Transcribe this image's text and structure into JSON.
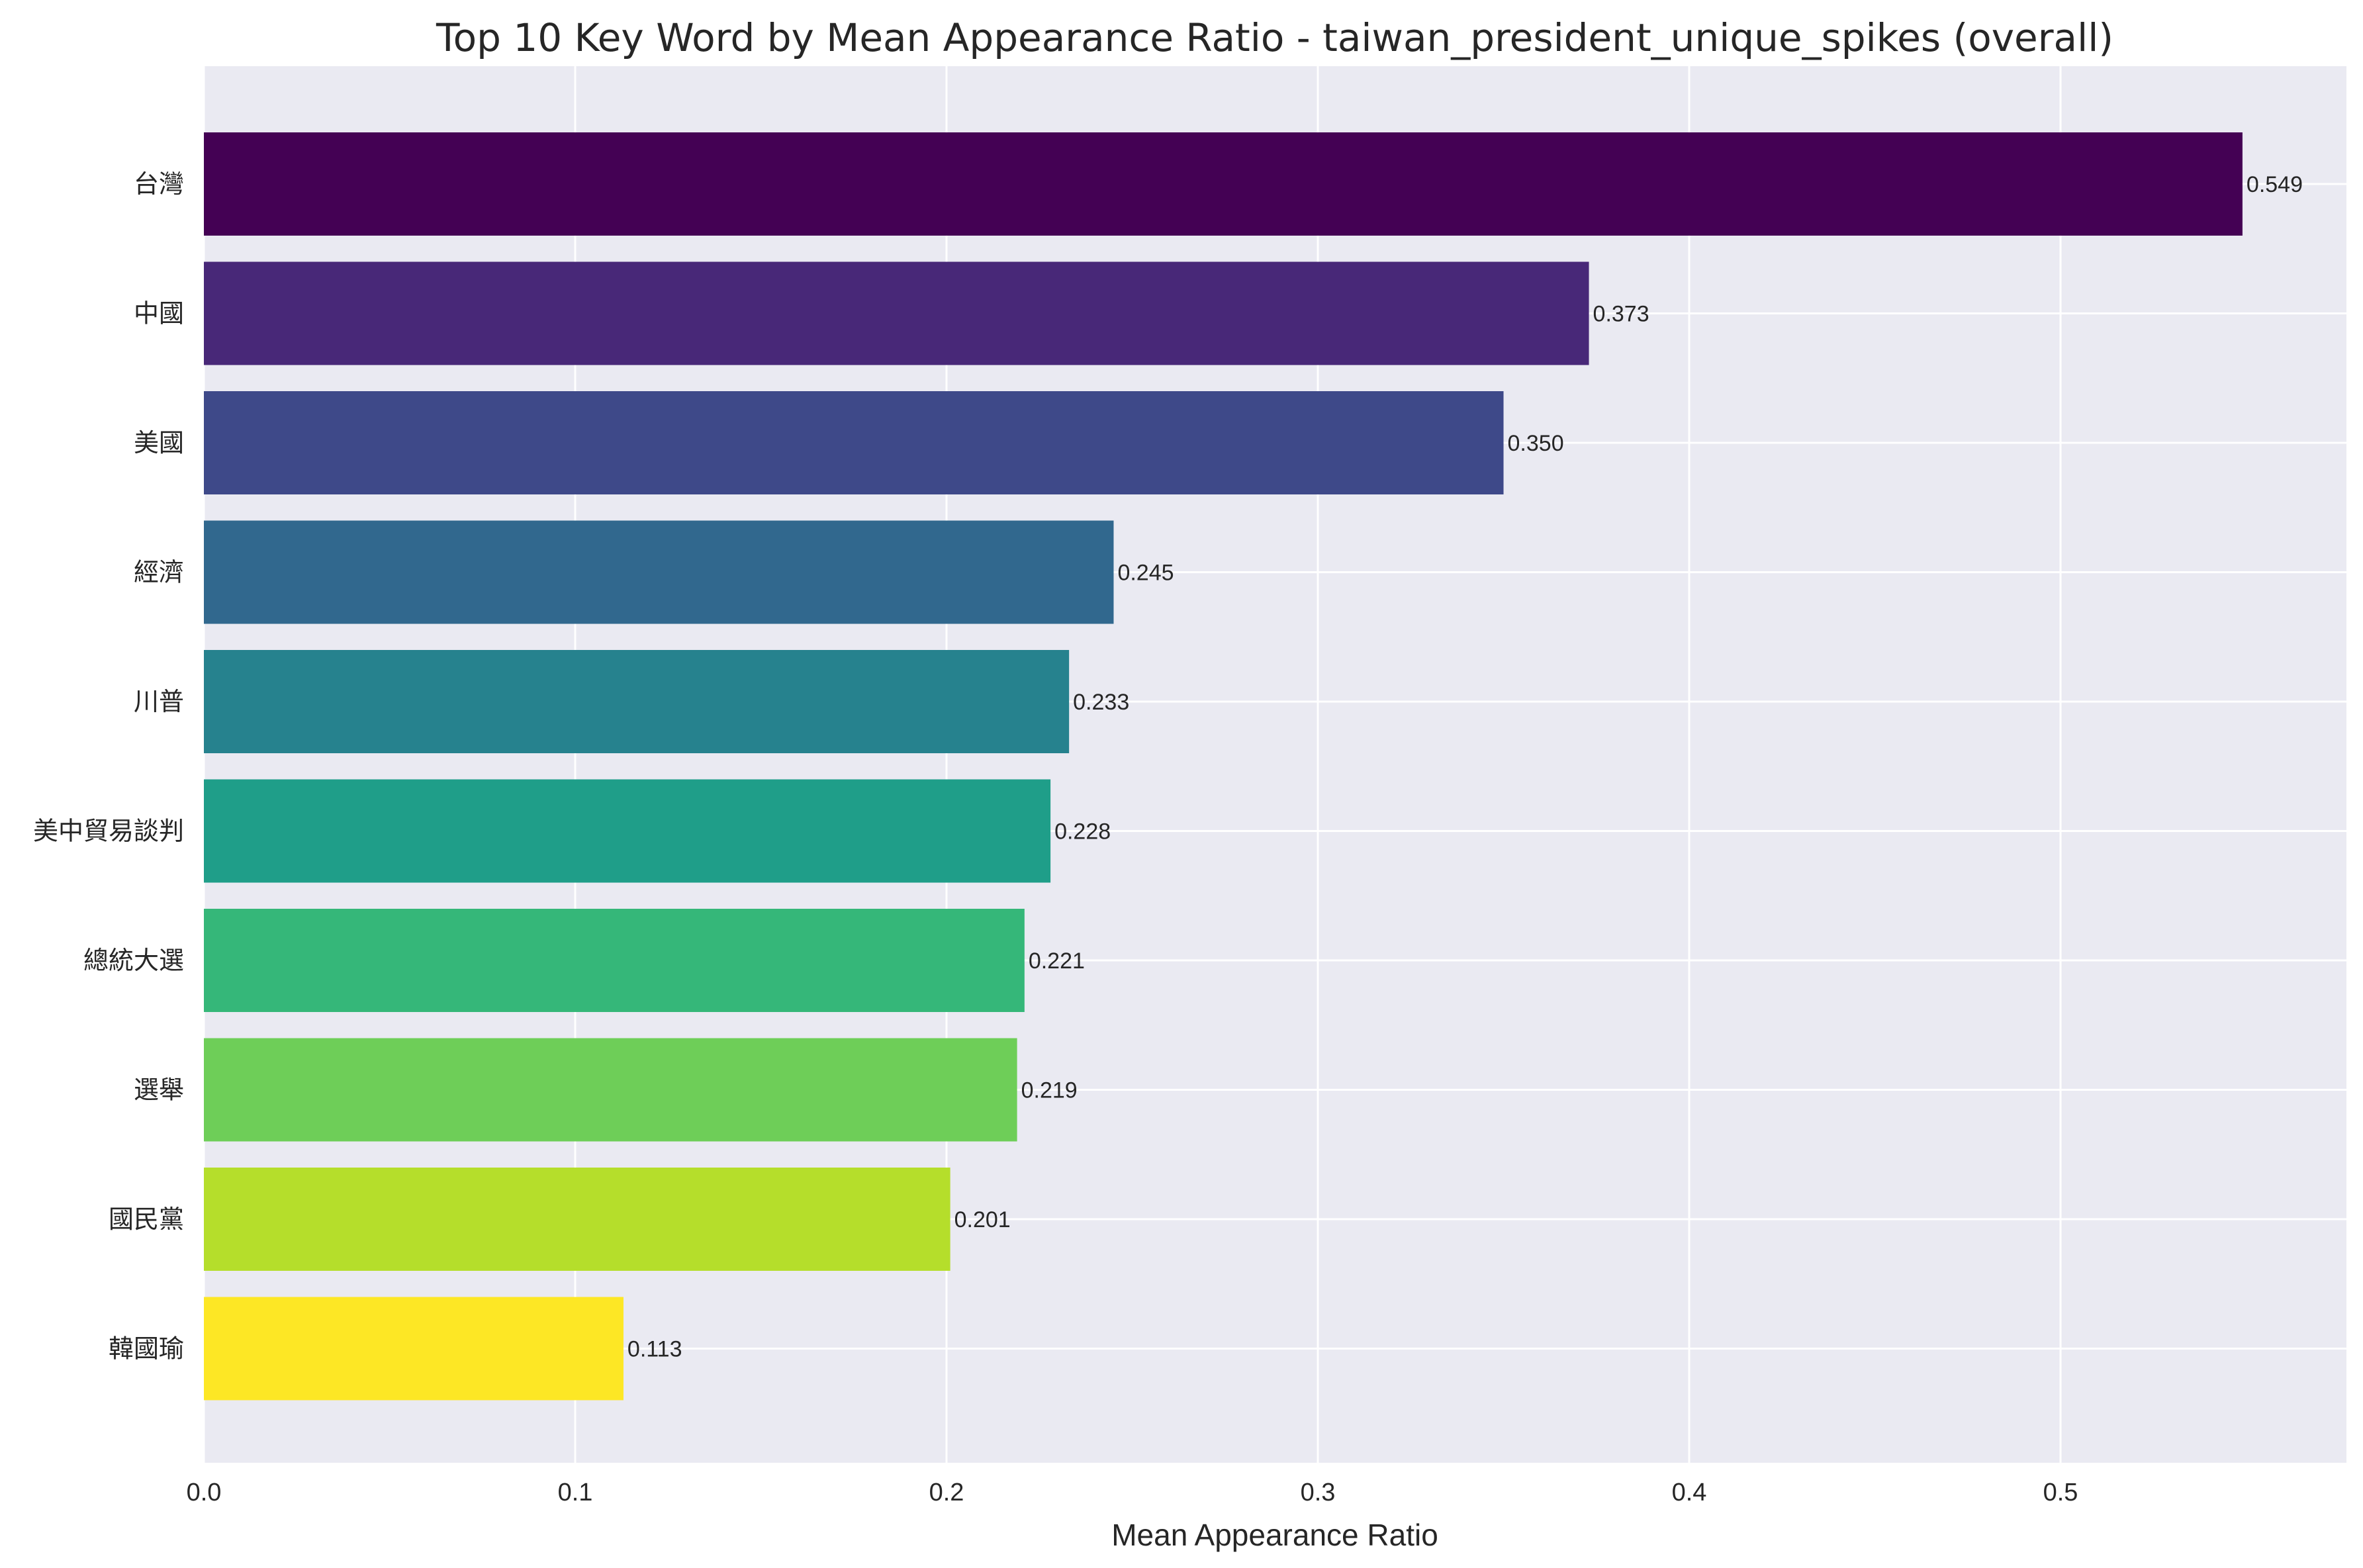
{
  "chart_data": {
    "type": "bar",
    "orientation": "horizontal",
    "title": "Top 10 Key Word by Mean Appearance Ratio - taiwan_president_unique_spikes (overall)",
    "xlabel": "Mean Appearance Ratio",
    "ylabel": "",
    "xlim": [
      0,
      0.577
    ],
    "xticks": [
      0.0,
      0.1,
      0.2,
      0.3,
      0.4,
      0.5
    ],
    "xtick_labels": [
      "0.0",
      "0.1",
      "0.2",
      "0.3",
      "0.4",
      "0.5"
    ],
    "grid": true,
    "colormap": "viridis",
    "categories": [
      "台灣",
      "中國",
      "美國",
      "經濟",
      "川普",
      "美中貿易談判",
      "總統大選",
      "選舉",
      "國民黨",
      "韓國瑜"
    ],
    "values": [
      0.549,
      0.373,
      0.35,
      0.245,
      0.233,
      0.228,
      0.221,
      0.219,
      0.201,
      0.113
    ],
    "value_labels": [
      "0.549",
      "0.373",
      "0.350",
      "0.245",
      "0.233",
      "0.228",
      "0.221",
      "0.219",
      "0.201",
      "0.113"
    ],
    "colors": [
      "#440154",
      "#482878",
      "#3e4989",
      "#31688e",
      "#26828e",
      "#1f9e89",
      "#35b779",
      "#6ece58",
      "#b5de2b",
      "#fde725"
    ]
  },
  "style": {
    "axes_bg": "#eaeaf2",
    "grid_color": "#ffffff",
    "page_bg": "#ffffff"
  }
}
